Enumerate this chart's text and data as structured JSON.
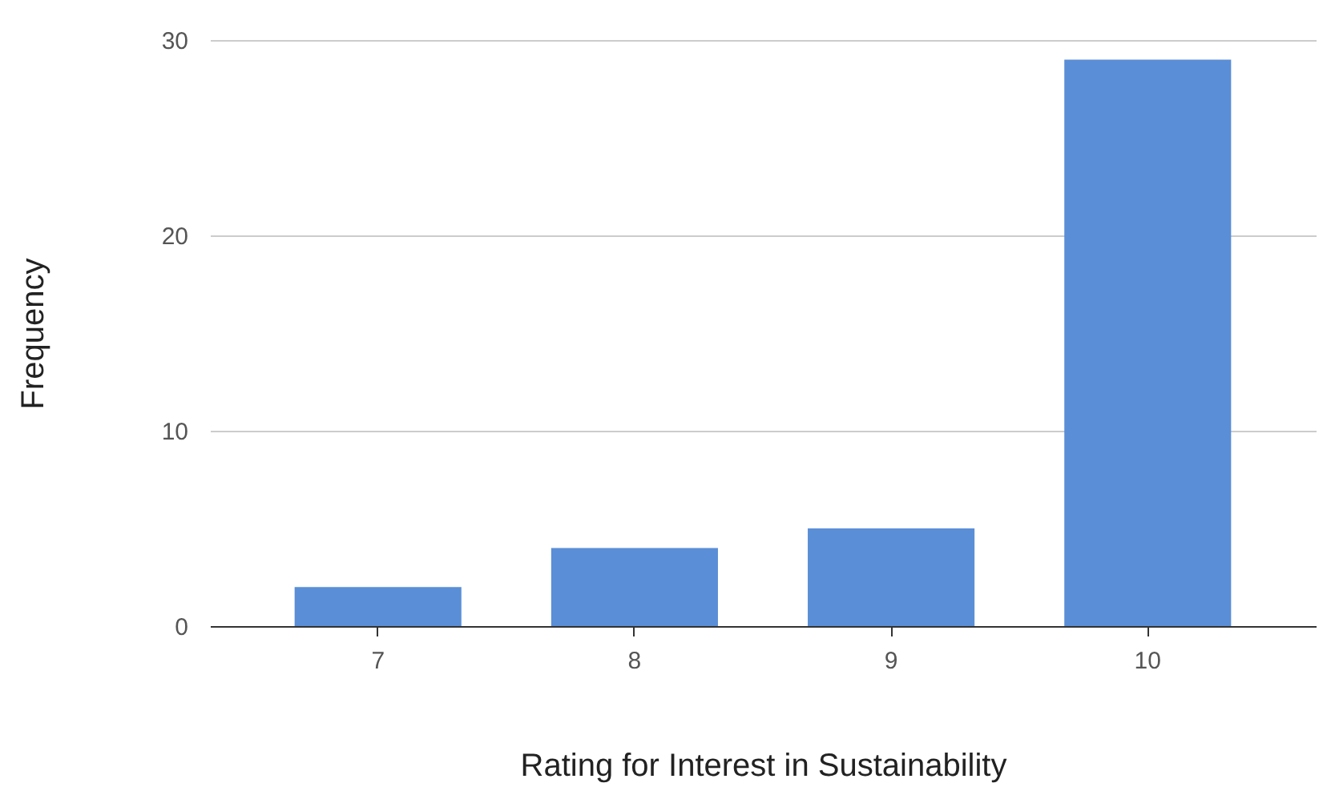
{
  "chart_data": {
    "type": "bar",
    "xlabel": "Rating for Interest in Sustainability",
    "ylabel": "Frequency",
    "categories": [
      "7",
      "8",
      "9",
      "10",
      null
    ],
    "values": [
      2,
      4,
      5,
      29,
      null
    ],
    "color": "#5a8ed6",
    "ylim": [
      0,
      30
    ],
    "yticks": [
      0,
      10,
      20,
      30
    ],
    "grid": "y"
  }
}
